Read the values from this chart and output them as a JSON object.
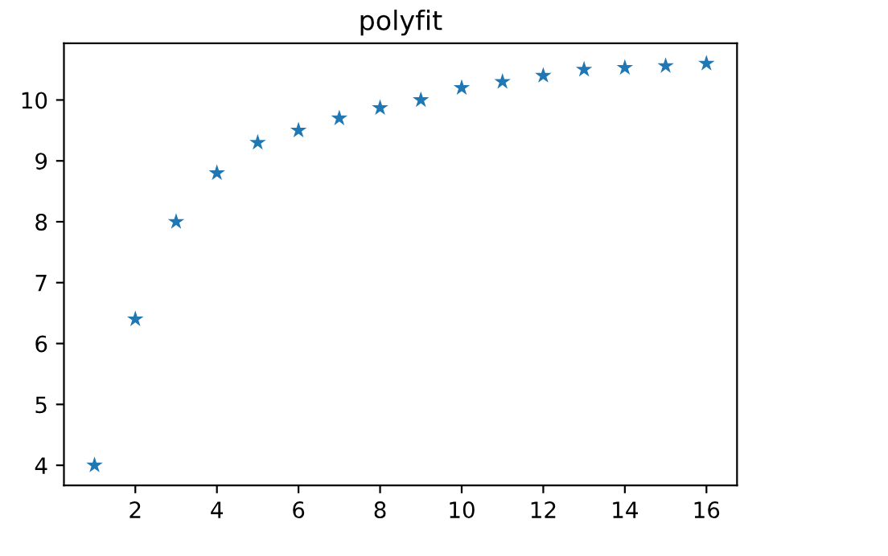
{
  "chart_data": {
    "type": "scatter",
    "title": "polyfit",
    "x": [
      1,
      2,
      3,
      4,
      5,
      6,
      7,
      8,
      9,
      10,
      11,
      12,
      13,
      14,
      15,
      16
    ],
    "series": [
      {
        "color": "#1f77b4",
        "values": [
          4.0,
          6.4,
          8.0,
          8.8,
          9.3,
          9.5,
          9.7,
          9.87,
          10.0,
          10.2,
          10.3,
          10.4,
          10.5,
          10.53,
          10.56,
          10.6
        ]
      }
    ],
    "marker": "star",
    "xlim": [
      0.25,
      16.75
    ],
    "ylim": [
      3.67,
      10.93
    ],
    "xticks": [
      2,
      4,
      6,
      8,
      10,
      12,
      14,
      16
    ],
    "yticks": [
      4,
      5,
      6,
      7,
      8,
      9,
      10
    ],
    "grid": false
  }
}
